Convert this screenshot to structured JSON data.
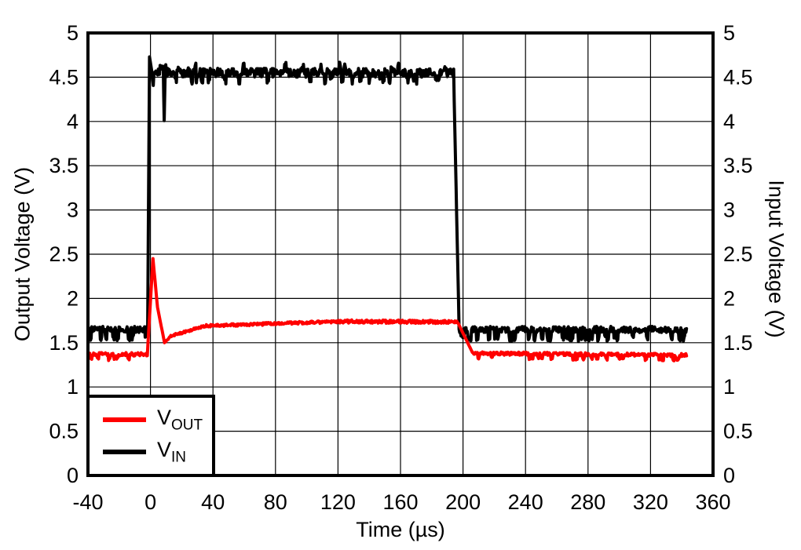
{
  "chart_data": {
    "type": "line",
    "title": "",
    "xlabel": "Time (µs)",
    "ylabel_left": "Output Voltage (V)",
    "ylabel_right": "Input Voltage (V)",
    "xlim": [
      -40,
      360
    ],
    "ylim": [
      0,
      5
    ],
    "x_ticks": [
      -40,
      0,
      40,
      80,
      120,
      160,
      200,
      240,
      280,
      320,
      360
    ],
    "y_ticks": [
      0,
      0.5,
      1,
      1.5,
      2,
      2.5,
      3,
      3.5,
      4,
      4.5,
      5
    ],
    "grid": true,
    "background": "#ffffff",
    "axis_color": "#000000",
    "noise_seed": 987654321,
    "sample_step_us": 0.4,
    "legend": {
      "position": "bottom-left",
      "entries": [
        {
          "label": "V",
          "sub": "OUT",
          "color": "#ff0000"
        },
        {
          "label": "V",
          "sub": "IN",
          "color": "#000000"
        }
      ]
    },
    "series": [
      {
        "name": "vin",
        "color": "#000000",
        "axis": "right",
        "stroke_width": 4,
        "description": "Input voltage step: 1.65 V baseline, pulse to 4.55 V from t=0 to t=195 us, overshoot 4.73 V at rise, brief dip to 4.0 V at t=8.5 us",
        "segments": [
          {
            "t0": -40,
            "t1": -1.8,
            "v0": 1.65,
            "v1": 1.65,
            "noise": 0.035,
            "spike_down": -0.1,
            "spike_down_prob": 0.1
          },
          {
            "t0": -1.8,
            "t1": -0.6,
            "v0": 1.65,
            "v1": 4.73
          },
          {
            "t0": -0.6,
            "t1": 1.0,
            "v0": 4.73,
            "v1": 4.55
          },
          {
            "t0": 1.0,
            "t1": 8.2,
            "v0": 4.55,
            "v1": 4.55,
            "noise": 0.05,
            "spike_up": 0.07,
            "spike_up_prob": 0.05,
            "spike_down": -0.08,
            "spike_down_prob": 0.05
          },
          {
            "t0": 8.2,
            "t1": 8.8,
            "v0": 4.55,
            "v1": 4.01
          },
          {
            "t0": 8.8,
            "t1": 9.4,
            "v0": 4.01,
            "v1": 4.55
          },
          {
            "t0": 9.4,
            "t1": 194,
            "v0": 4.55,
            "v1": 4.55,
            "noise": 0.05,
            "spike_up": 0.07,
            "spike_up_prob": 0.05,
            "spike_down": -0.08,
            "spike_down_prob": 0.05
          },
          {
            "t0": 194,
            "t1": 197.5,
            "v0": 4.55,
            "v1": 1.65
          },
          {
            "t0": 197.5,
            "t1": 343,
            "v0": 1.65,
            "v1": 1.65,
            "noise": 0.035,
            "spike_down": -0.1,
            "spike_down_prob": 0.1
          }
        ]
      },
      {
        "name": "vout",
        "color": "#ff0000",
        "axis": "left",
        "stroke_width": 4,
        "description": "Output voltage: 1.37 V baseline, transient spike to 2.45 V at t=0, dip to 1.50 V at t=9 us, settles ~1.74 V, drops back to 1.37 V after t=200 us",
        "segments": [
          {
            "t0": -40,
            "t1": -2.0,
            "v0": 1.37,
            "v1": 1.37,
            "noise": 0.02,
            "spike_down": -0.055,
            "spike_down_prob": 0.08
          },
          {
            "t0": -2.0,
            "t1": 1.6,
            "v0": 1.37,
            "v1": 2.45
          },
          {
            "t0": 1.6,
            "t1": 4.5,
            "v0": 2.45,
            "v1": 1.9
          },
          {
            "t0": 4.5,
            "t1": 9.0,
            "v0": 1.9,
            "v1": 1.5
          },
          {
            "t0": 9.0,
            "t1": 13,
            "v0": 1.5,
            "v1": 1.575,
            "noise": 0.008
          },
          {
            "t0": 13,
            "t1": 35,
            "v0": 1.575,
            "v1": 1.69,
            "noise": 0.012
          },
          {
            "t0": 35,
            "t1": 120,
            "v0": 1.69,
            "v1": 1.74,
            "noise": 0.015
          },
          {
            "t0": 120,
            "t1": 196.5,
            "v0": 1.74,
            "v1": 1.735,
            "noise": 0.018
          },
          {
            "t0": 196.5,
            "t1": 206,
            "v0": 1.735,
            "v1": 1.39
          },
          {
            "t0": 206,
            "t1": 343,
            "v0": 1.38,
            "v1": 1.36,
            "noise": 0.018,
            "spike_down": -0.05,
            "spike_down_prob": 0.07
          }
        ]
      }
    ]
  }
}
